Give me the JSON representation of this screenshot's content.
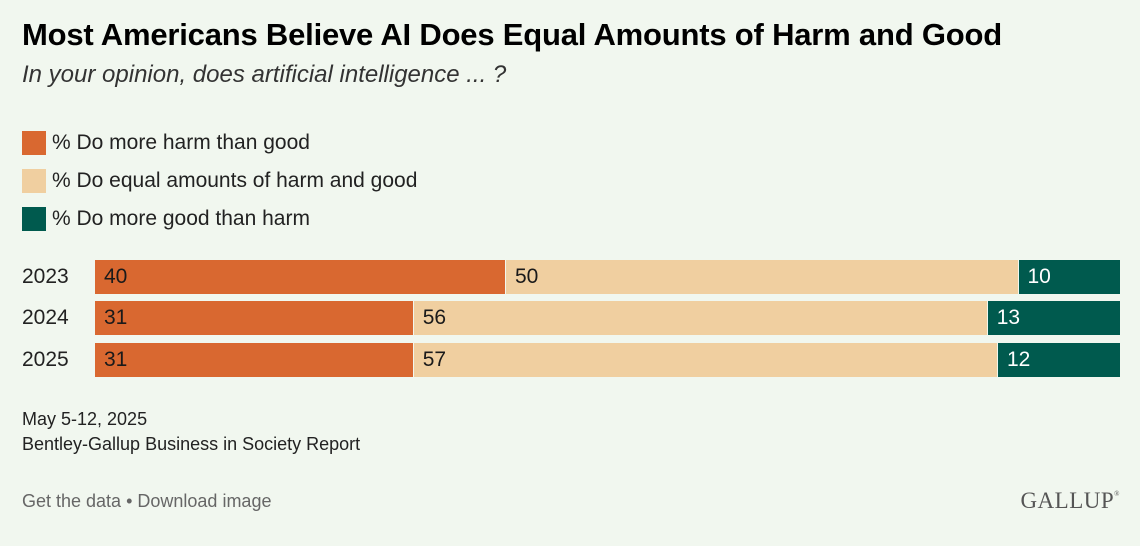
{
  "header": {
    "title": "Most Americans Believe AI Does Equal Amounts of Harm and Good",
    "subtitle": "In your opinion, does artificial intelligence ... ?"
  },
  "chart_data": {
    "type": "bar",
    "orientation": "horizontal",
    "stacked": true,
    "title": "Most Americans Believe AI Does Equal Amounts of Harm and Good",
    "subtitle": "In your opinion, does artificial intelligence ... ?",
    "categories": [
      "2023",
      "2024",
      "2025"
    ],
    "series": [
      {
        "name": "% Do more harm than good",
        "color": "#d96830",
        "label_color": "#1a1a1a",
        "values": [
          40,
          31,
          31
        ]
      },
      {
        "name": "% Do equal amounts of harm and good",
        "color": "#f0cfa0",
        "label_color": "#1a1a1a",
        "values": [
          50,
          56,
          57
        ]
      },
      {
        "name": "% Do more good than harm",
        "color": "#005a4e",
        "label_color": "#ffffff",
        "values": [
          10,
          13,
          12
        ]
      }
    ],
    "xlim": [
      0,
      100
    ],
    "legend_position": "top-left",
    "grid": false
  },
  "footer": {
    "date": "May 5-12, 2025",
    "source": "Bentley-Gallup Business in Society Report",
    "get_data": "Get the data",
    "separator": " • ",
    "download": "Download image",
    "logo": "GALLUP",
    "logo_mark": "®"
  }
}
